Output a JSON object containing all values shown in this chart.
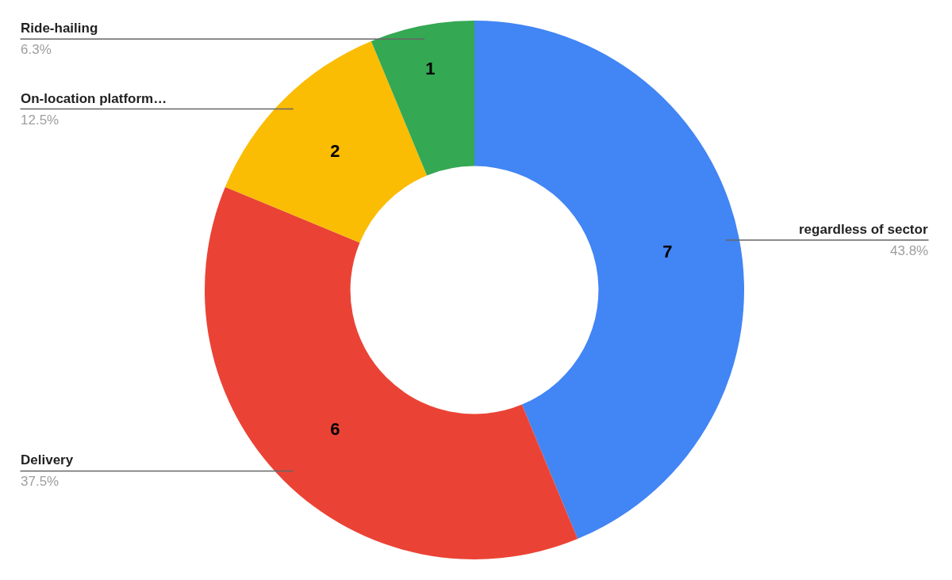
{
  "chart_data": {
    "type": "donut",
    "categories": [
      "regardless of sector",
      "Delivery",
      "On-location platform…",
      "Ride-hailing"
    ],
    "values": [
      7,
      6,
      2,
      1
    ],
    "colors": [
      "#4285f4",
      "#ea4335",
      "#fbbc04",
      "#34a853"
    ],
    "data_labels": true,
    "annotations": [
      "43.8%",
      "37.5%",
      "12.5%",
      "6.3%"
    ],
    "legend": false
  }
}
